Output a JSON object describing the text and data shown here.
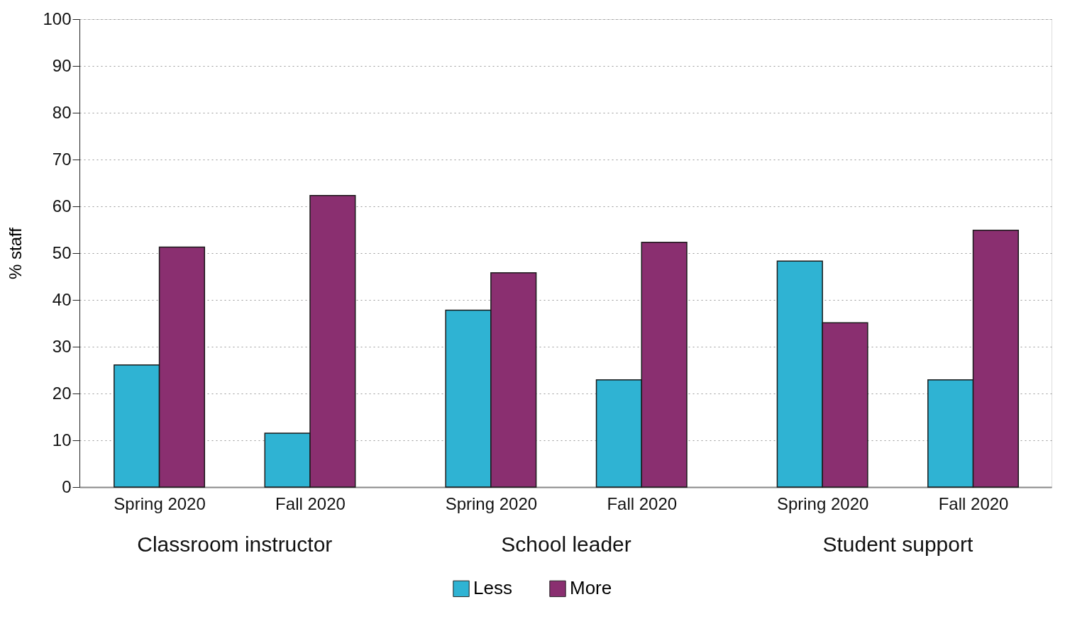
{
  "chart_data": {
    "type": "bar",
    "ylabel": "% staff",
    "categories": [
      "Spring 2020",
      "Fall 2020",
      "Spring 2020",
      "Fall 2020",
      "Spring 2020",
      "Fall 2020"
    ],
    "series": [
      {
        "name": "Less",
        "color": "#2fb3d3",
        "values": [
          26.1,
          11.5,
          37.8,
          22.9,
          48.3,
          22.9
        ]
      },
      {
        "name": "More",
        "color": "#8a2f70",
        "values": [
          51.3,
          62.3,
          45.8,
          52.3,
          35.1,
          54.9
        ]
      }
    ],
    "annotations": [
      "Classroom instructor",
      "School leader",
      "Student support"
    ],
    "ylim": [
      0,
      100
    ],
    "yticks": [
      0,
      10,
      20,
      30,
      40,
      50,
      60,
      70,
      80,
      90,
      100
    ],
    "grid": "y",
    "legend": "bottom"
  }
}
